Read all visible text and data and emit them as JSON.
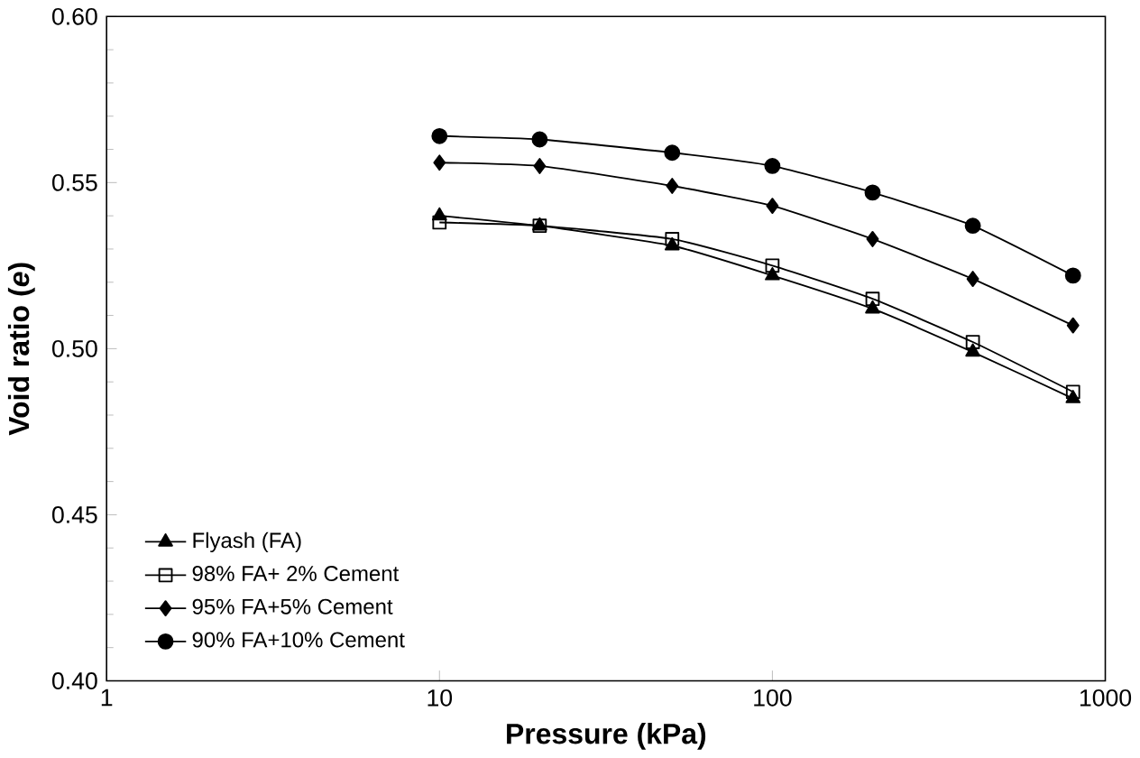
{
  "chart_data": {
    "type": "line",
    "xlabel": "Pressure (kPa)",
    "ylabel": "Void ratio (*e*)",
    "log": "x",
    "xlim": [
      1,
      1000
    ],
    "xticks": [
      1,
      10,
      100,
      1000
    ],
    "ylim": [
      0.4,
      0.6
    ],
    "yticks": [
      {
        "value": 0.4,
        "label": "0.40"
      },
      {
        "value": 0.45,
        "label": "0.45"
      },
      {
        "value": 0.5,
        "label": "0.50"
      },
      {
        "value": 0.55,
        "label": "0.55"
      },
      {
        "value": 0.6,
        "label": "0.60"
      }
    ],
    "x": [
      10,
      20,
      50,
      100,
      200,
      400,
      800
    ],
    "legend": "bottom left",
    "grid": false,
    "line_style": "solid",
    "series": [
      {
        "name": "Flyash (FA)",
        "color": "#000000",
        "marker": "triangle",
        "values": [
          0.54,
          0.537,
          0.531,
          0.522,
          0.512,
          0.499,
          0.485
        ]
      },
      {
        "name": "98% FA+ 2% Cement",
        "color": "#000000",
        "marker": "square",
        "values": [
          0.538,
          0.537,
          0.533,
          0.525,
          0.515,
          0.502,
          0.487
        ]
      },
      {
        "name": "95% FA+5% Cement",
        "color": "#000000",
        "marker": "diamond",
        "values": [
          0.556,
          0.555,
          0.549,
          0.543,
          0.533,
          0.521,
          0.507
        ]
      },
      {
        "name": "90% FA+10% Cement",
        "color": "#000000",
        "marker": "circle",
        "values": [
          0.564,
          0.563,
          0.559,
          0.555,
          0.547,
          0.537,
          0.522
        ]
      }
    ]
  }
}
